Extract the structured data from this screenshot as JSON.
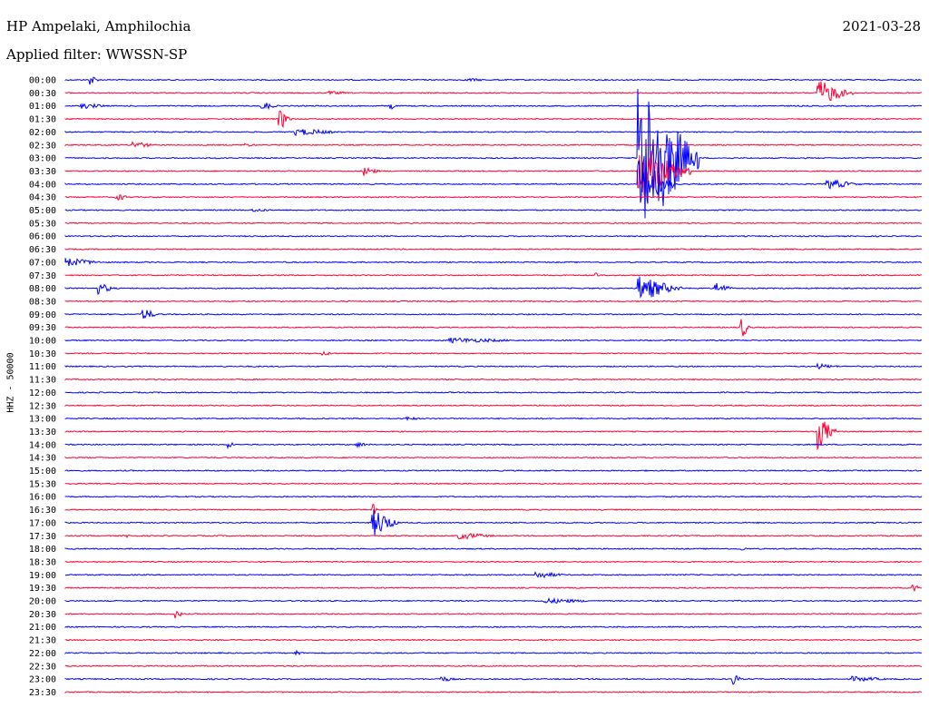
{
  "header": {
    "station": "HP Ampelaki, Amphilochia",
    "date": "2021-03-28",
    "filter": "Applied filter: WWSSN-SP"
  },
  "axis": {
    "ylabel": "HHZ - 50000"
  },
  "colors": {
    "blue": "#0000ff",
    "red": "#ff0033"
  },
  "chart_data": {
    "type": "line",
    "title": "HP Ampelaki, Amphilochia",
    "ylabel": "HHZ - 50000",
    "row_labels": [
      "00:00",
      "00:30",
      "01:00",
      "01:30",
      "02:00",
      "02:30",
      "03:00",
      "03:30",
      "04:00",
      "04:30",
      "05:00",
      "05:30",
      "06:00",
      "06:30",
      "07:00",
      "07:30",
      "08:00",
      "08:30",
      "09:00",
      "09:30",
      "10:00",
      "10:30",
      "11:00",
      "11:30",
      "12:00",
      "12:30",
      "13:00",
      "13:30",
      "14:00",
      "14:30",
      "15:00",
      "15:30",
      "16:00",
      "16:30",
      "17:00",
      "17:30",
      "18:00",
      "18:30",
      "19:00",
      "19:30",
      "20:00",
      "20:30",
      "21:00",
      "21:30",
      "22:00",
      "22:30",
      "23:00",
      "23:30"
    ],
    "trace_colors": [
      "blue",
      "red"
    ],
    "events": [
      {
        "row": 0,
        "at": 0.03,
        "amp": 6,
        "dur": 0.01
      },
      {
        "row": 0,
        "at": 0.47,
        "amp": 2,
        "dur": 0.03
      },
      {
        "row": 1,
        "at": 0.31,
        "amp": 2,
        "dur": 0.03
      },
      {
        "row": 1,
        "at": 0.88,
        "amp": 14,
        "dur": 0.04
      },
      {
        "row": 2,
        "at": 0.02,
        "amp": 3,
        "dur": 0.04
      },
      {
        "row": 2,
        "at": 0.23,
        "amp": 5,
        "dur": 0.02
      },
      {
        "row": 2,
        "at": 0.38,
        "amp": 8,
        "dur": 0.005
      },
      {
        "row": 3,
        "at": 0.25,
        "amp": 12,
        "dur": 0.015
      },
      {
        "row": 4,
        "at": 0.27,
        "amp": 4,
        "dur": 0.06
      },
      {
        "row": 5,
        "at": 0.08,
        "amp": 4,
        "dur": 0.03
      },
      {
        "row": 5,
        "at": 0.21,
        "amp": 2,
        "dur": 0.02
      },
      {
        "row": 6,
        "at": 0.67,
        "amp": 90,
        "dur": 0.07
      },
      {
        "row": 7,
        "at": 0.35,
        "amp": 5,
        "dur": 0.02
      },
      {
        "row": 7,
        "at": 0.67,
        "amp": 30,
        "dur": 0.06
      },
      {
        "row": 8,
        "at": 0.89,
        "amp": 6,
        "dur": 0.04
      },
      {
        "row": 8,
        "at": 0.67,
        "amp": 28,
        "dur": 0.04
      },
      {
        "row": 9,
        "at": 0.06,
        "amp": 4,
        "dur": 0.02
      },
      {
        "row": 10,
        "at": 0.22,
        "amp": 2,
        "dur": 0.03
      },
      {
        "row": 14,
        "at": 0.0,
        "amp": 5,
        "dur": 0.05
      },
      {
        "row": 15,
        "at": 0.62,
        "amp": 4,
        "dur": 0.005
      },
      {
        "row": 16,
        "at": 0.04,
        "amp": 6,
        "dur": 0.02
      },
      {
        "row": 16,
        "at": 0.67,
        "amp": 14,
        "dur": 0.05
      },
      {
        "row": 16,
        "at": 0.76,
        "amp": 7,
        "dur": 0.02
      },
      {
        "row": 18,
        "at": 0.09,
        "amp": 7,
        "dur": 0.02
      },
      {
        "row": 19,
        "at": 0.79,
        "amp": 12,
        "dur": 0.01
      },
      {
        "row": 20,
        "at": 0.45,
        "amp": 3,
        "dur": 0.1
      },
      {
        "row": 21,
        "at": 0.3,
        "amp": 3,
        "dur": 0.015
      },
      {
        "row": 22,
        "at": 0.88,
        "amp": 3,
        "dur": 0.03
      },
      {
        "row": 26,
        "at": 0.4,
        "amp": 2,
        "dur": 0.02
      },
      {
        "row": 27,
        "at": 0.88,
        "amp": 18,
        "dur": 0.02
      },
      {
        "row": 28,
        "at": 0.19,
        "amp": 4,
        "dur": 0.01
      },
      {
        "row": 28,
        "at": 0.34,
        "amp": 3,
        "dur": 0.02
      },
      {
        "row": 33,
        "at": 0.36,
        "amp": 7,
        "dur": 0.005
      },
      {
        "row": 34,
        "at": 0.36,
        "amp": 16,
        "dur": 0.03
      },
      {
        "row": 35,
        "at": 0.46,
        "amp": 4,
        "dur": 0.05
      },
      {
        "row": 35,
        "at": 0.07,
        "amp": 2,
        "dur": 0.015
      },
      {
        "row": 36,
        "at": 0.79,
        "amp": 2,
        "dur": 0.01
      },
      {
        "row": 38,
        "at": 0.55,
        "amp": 4,
        "dur": 0.04
      },
      {
        "row": 39,
        "at": 0.99,
        "amp": 8,
        "dur": 0.01
      },
      {
        "row": 40,
        "at": 0.56,
        "amp": 3,
        "dur": 0.07
      },
      {
        "row": 41,
        "at": 0.13,
        "amp": 4,
        "dur": 0.01
      },
      {
        "row": 44,
        "at": 0.27,
        "amp": 3,
        "dur": 0.01
      },
      {
        "row": 46,
        "at": 0.78,
        "amp": 7,
        "dur": 0.01
      },
      {
        "row": 46,
        "at": 0.44,
        "amp": 3,
        "dur": 0.02
      },
      {
        "row": 46,
        "at": 0.92,
        "amp": 3,
        "dur": 0.05
      }
    ]
  }
}
